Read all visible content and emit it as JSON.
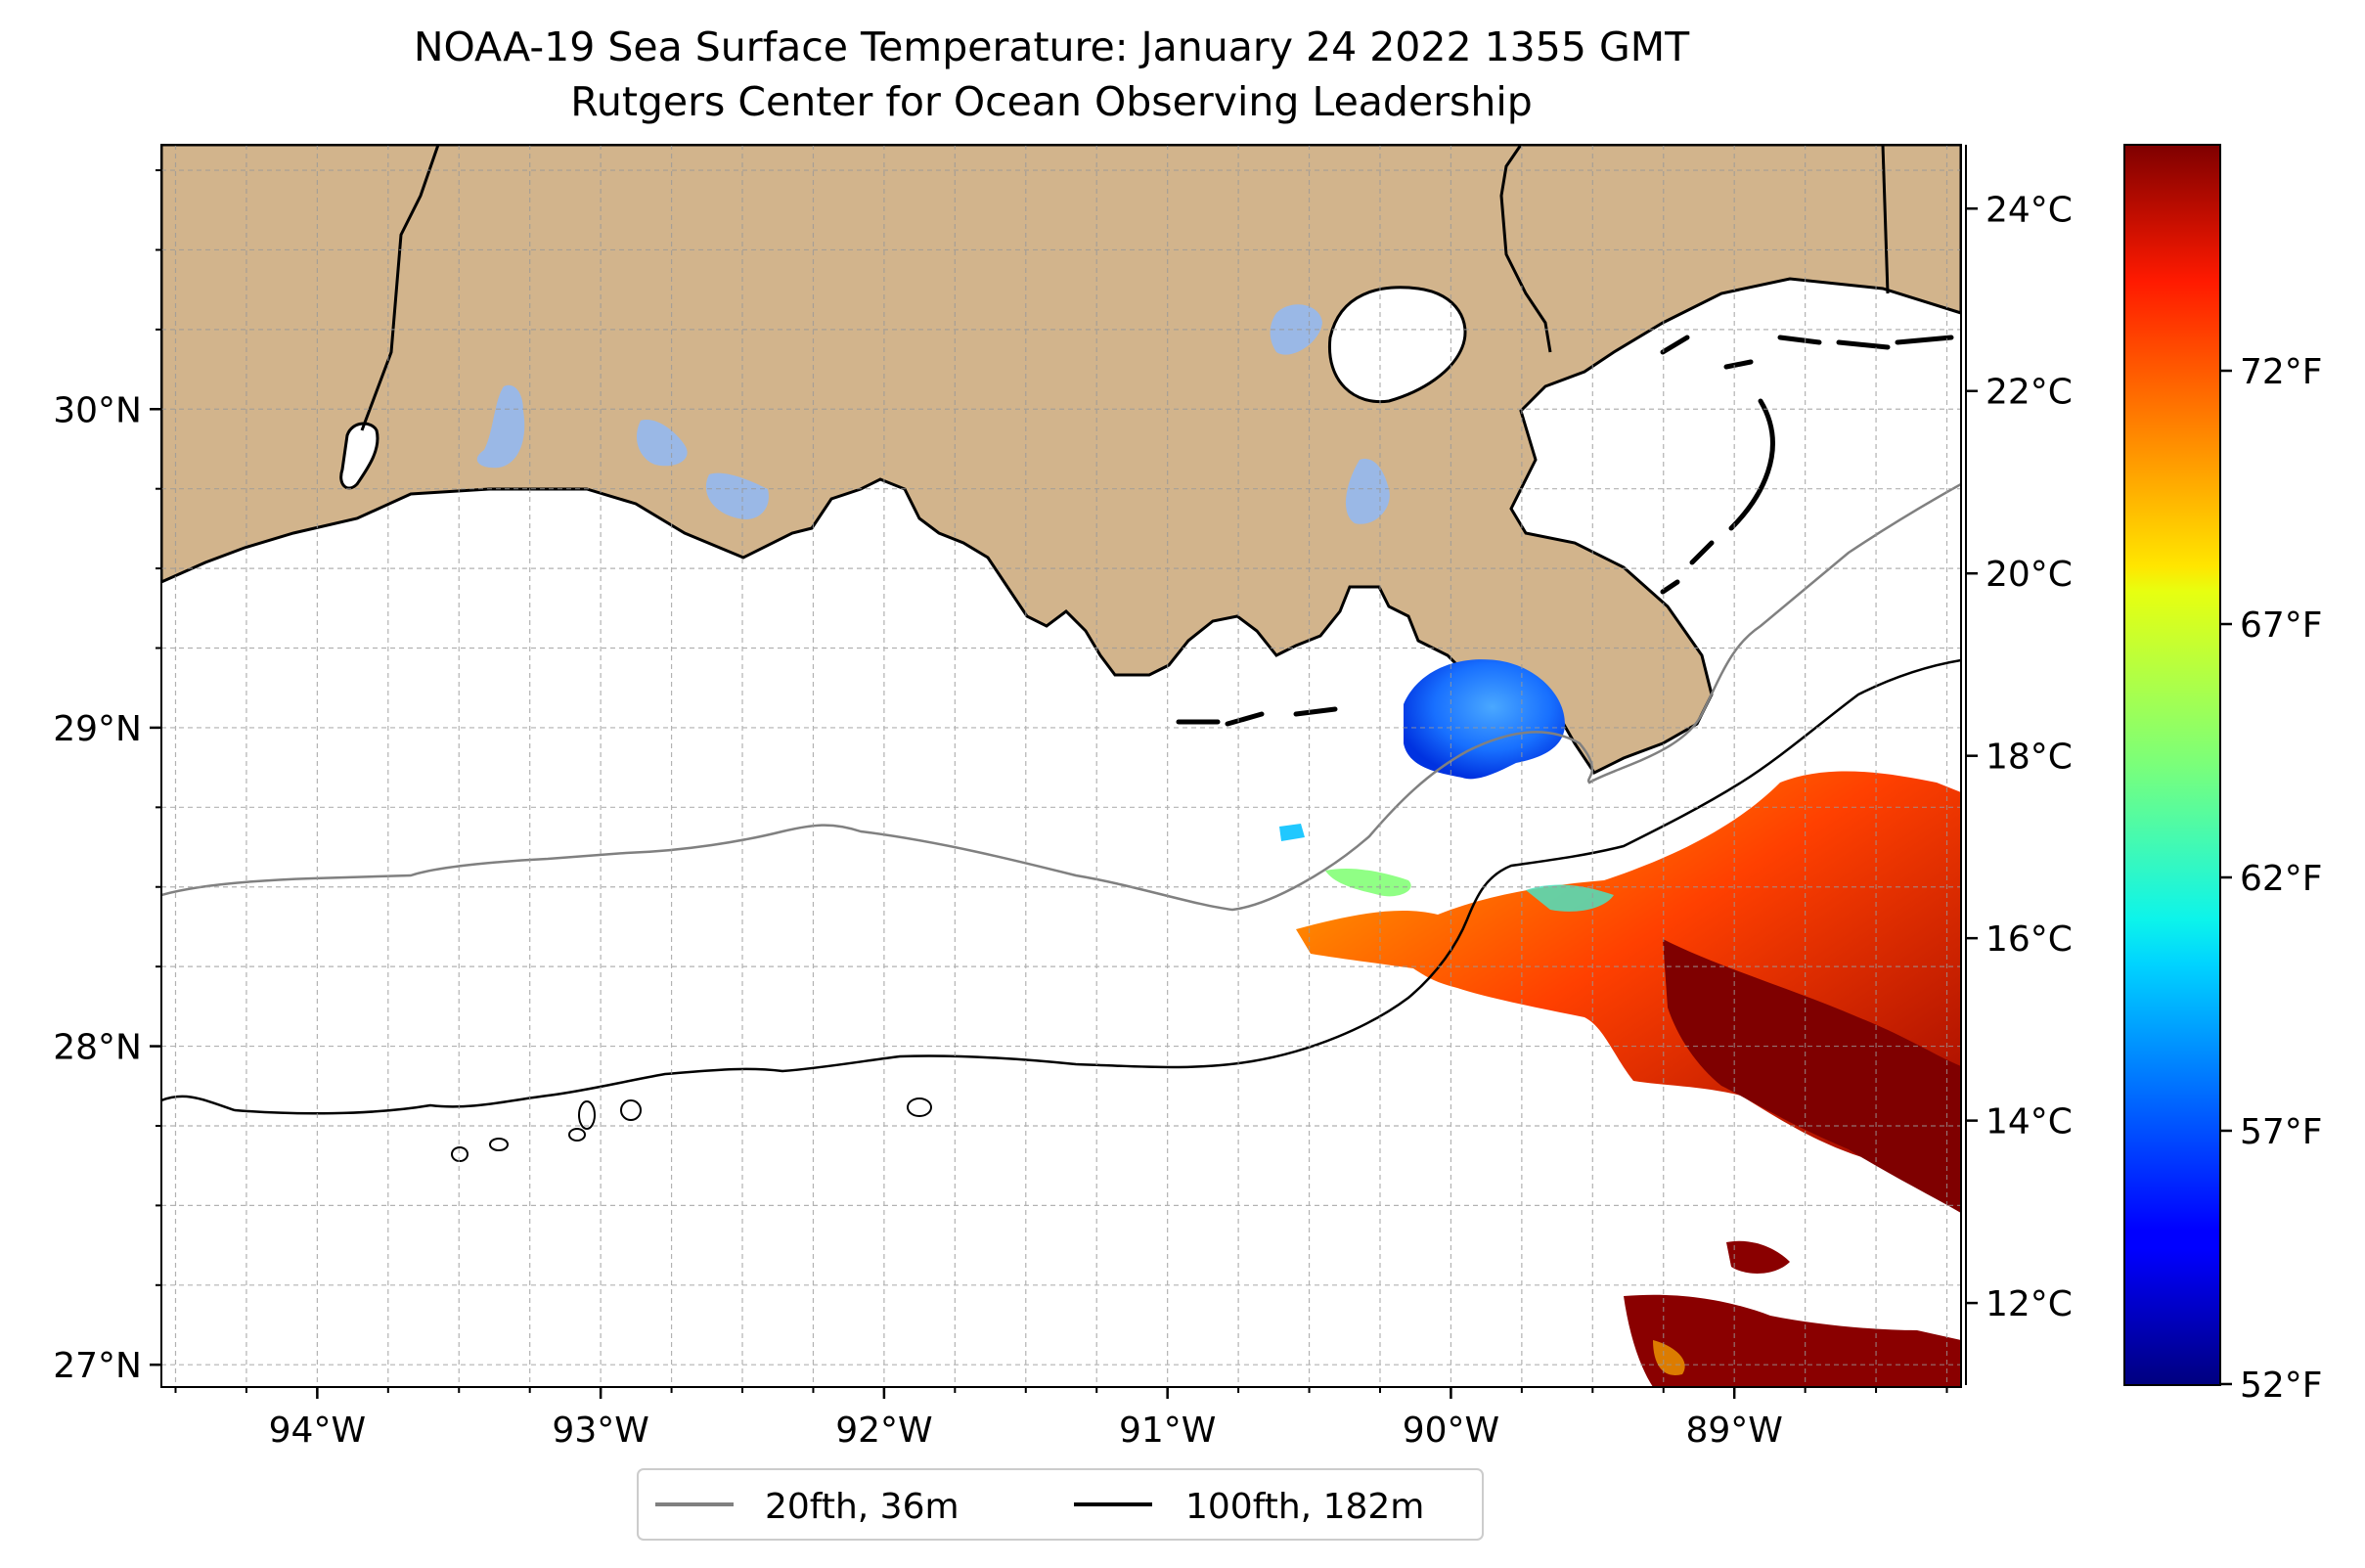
{
  "title": {
    "line1": "NOAA-19 Sea Surface Temperature: January 24 2022 1355 GMT",
    "line2": "Rutgers Center for Ocean Observing Leadership"
  },
  "map": {
    "lon_range": [
      -94.55,
      -88.2
    ],
    "lat_range": [
      26.93,
      30.83
    ],
    "lat_ticks": [
      {
        "value": 30,
        "label": "30°N"
      },
      {
        "value": 29,
        "label": "29°N"
      },
      {
        "value": 28,
        "label": "28°N"
      },
      {
        "value": 27,
        "label": "27°N"
      }
    ],
    "lon_ticks": [
      {
        "value": -94,
        "label": "94°W"
      },
      {
        "value": -93,
        "label": "93°W"
      },
      {
        "value": -92,
        "label": "92°W"
      },
      {
        "value": -91,
        "label": "91°W"
      },
      {
        "value": -90,
        "label": "90°W"
      },
      {
        "value": -89,
        "label": "89°W"
      }
    ],
    "gridlines": true,
    "colors": {
      "land": "#d2b48c",
      "lake": "#9ab8e6",
      "ocean": "#ffffff",
      "coast": "#000000",
      "isobath_20fth": "#808080",
      "isobath_100fth": "#000000"
    }
  },
  "legend": {
    "placement": "bottom-center",
    "items": [
      {
        "label": "20fth, 36m",
        "color": "#808080"
      },
      {
        "label": "100fth, 182m",
        "color": "#000000"
      }
    ]
  },
  "colorbar": {
    "colormap": "jet",
    "range_c": [
      11.1,
      24.7
    ],
    "celsius_ticks": [
      {
        "value": 24,
        "label": "24°C"
      },
      {
        "value": 22,
        "label": "22°C"
      },
      {
        "value": 20,
        "label": "20°C"
      },
      {
        "value": 18,
        "label": "18°C"
      },
      {
        "value": 16,
        "label": "16°C"
      },
      {
        "value": 14,
        "label": "14°C"
      },
      {
        "value": 12,
        "label": "12°C"
      }
    ],
    "fahrenheit_ticks": [
      {
        "value": 72,
        "label": "72°F"
      },
      {
        "value": 67,
        "label": "67°F"
      },
      {
        "value": 62,
        "label": "62°F"
      },
      {
        "value": 57,
        "label": "57°F"
      },
      {
        "value": 52,
        "label": "52°F"
      }
    ]
  }
}
